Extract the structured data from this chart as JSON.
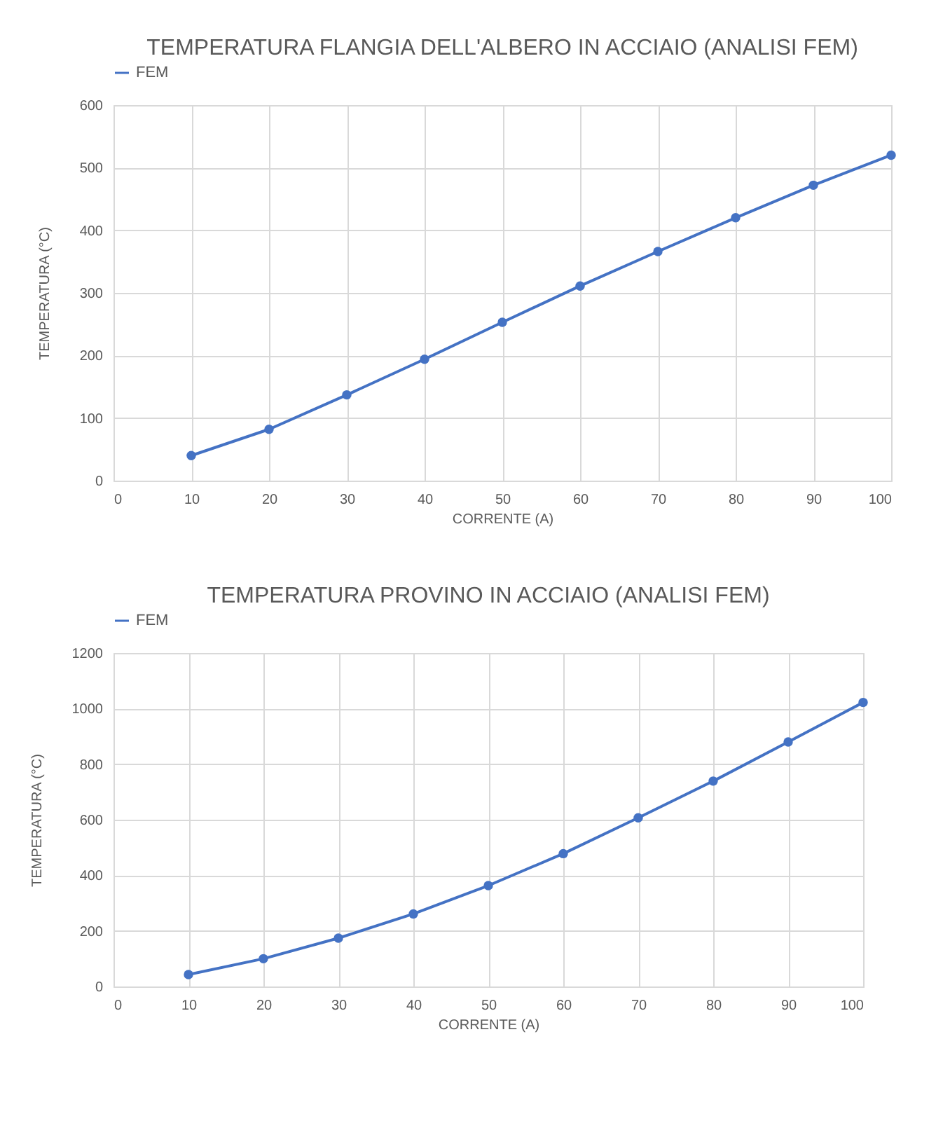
{
  "chart_data": [
    {
      "type": "line",
      "title": "TEMPERATURA FLANGIA DELL'ALBERO IN ACCIAIO (ANALISI FEM)",
      "xlabel": "CORRENTE (A)",
      "ylabel": "TEMPERATURA (°C)",
      "x": [
        10,
        20,
        30,
        40,
        50,
        60,
        70,
        80,
        90,
        100
      ],
      "series": [
        {
          "name": "FEM",
          "color": "#4472c4",
          "values": [
            40,
            82,
            137,
            194,
            253,
            311,
            366,
            420,
            472,
            520
          ]
        }
      ],
      "xlim": [
        0,
        100
      ],
      "xticks": [
        0,
        10,
        20,
        30,
        40,
        50,
        60,
        70,
        80,
        90,
        100
      ],
      "ylim": [
        0,
        600
      ],
      "yticks": [
        0,
        100,
        200,
        300,
        400,
        500,
        600
      ],
      "grid": true,
      "legend": "top",
      "marker": "circle",
      "line_style": "solid"
    },
    {
      "type": "line",
      "title": "TEMPERATURA PROVINO IN ACCIAIO (ANALISI FEM)",
      "xlabel": "CORRENTE (A)",
      "ylabel": "TEMPERATURA (°C)",
      "x": [
        10,
        20,
        30,
        40,
        50,
        60,
        70,
        80,
        90,
        100
      ],
      "series": [
        {
          "name": "FEM",
          "color": "#4472c4",
          "values": [
            43,
            100,
            174,
            261,
            363,
            478,
            607,
            739,
            880,
            1022
          ]
        }
      ],
      "xlim": [
        0,
        100
      ],
      "xticks": [
        0,
        10,
        20,
        30,
        40,
        50,
        60,
        70,
        80,
        90,
        100
      ],
      "ylim": [
        0,
        1200
      ],
      "yticks": [
        0,
        200,
        400,
        600,
        800,
        1000,
        1200
      ],
      "grid": true,
      "legend": "top",
      "marker": "circle",
      "line_style": "solid"
    }
  ]
}
